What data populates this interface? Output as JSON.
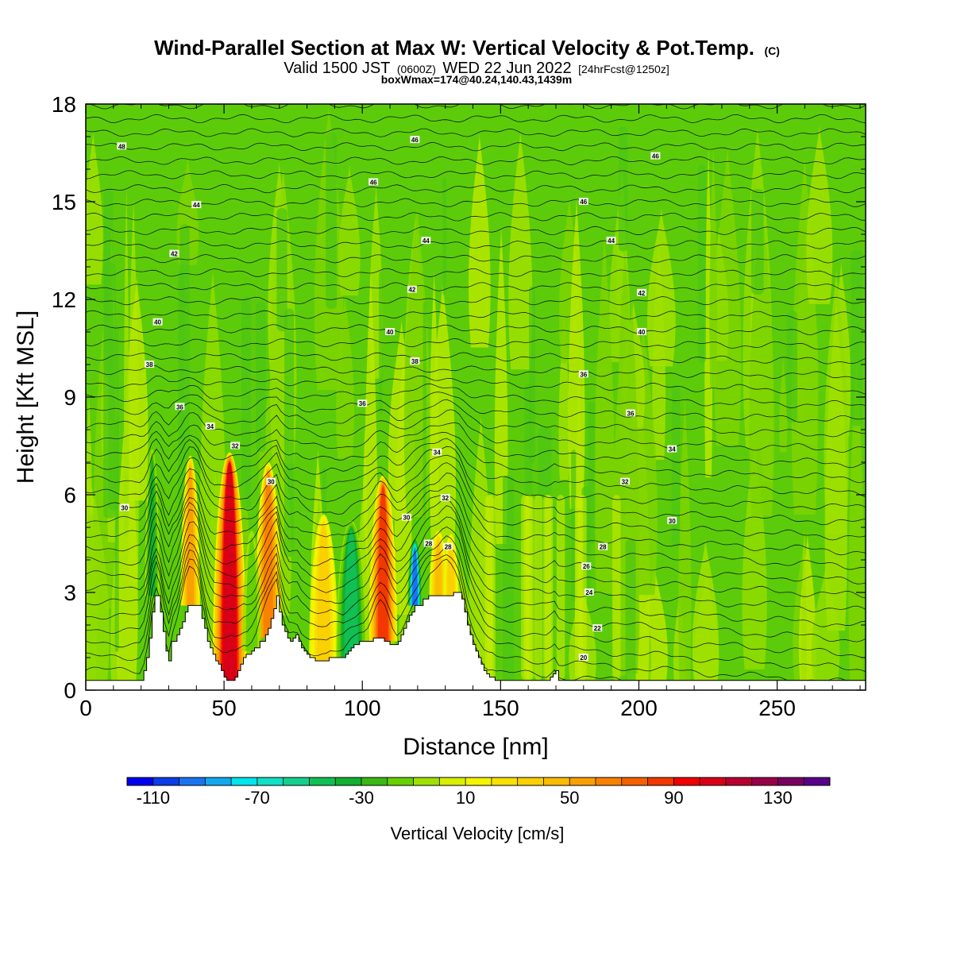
{
  "title": {
    "main": "Wind-Parallel Section at Max W: Vertical Velocity & Pot.Temp.",
    "copyright": "(C)",
    "valid_prefix": "Valid 1500 JST",
    "valid_z": "(0600Z)",
    "valid_date": "WED 22 Jun 2022",
    "forecast": "[24hrFcst@1250z]",
    "box": "boxWmax=174@40.24,140.43,1439m"
  },
  "chart_data": {
    "type": "heatmap",
    "xlabel": "Distance [nm]",
    "ylabel": "Height [Kft MSL]",
    "xlim": [
      0,
      282
    ],
    "ylim": [
      0,
      18
    ],
    "xticks": [
      0,
      50,
      100,
      150,
      200,
      250
    ],
    "yticks": [
      0,
      3,
      6,
      9,
      12,
      15,
      18
    ],
    "colorbar": {
      "label": "Vertical Velocity [cm/s]",
      "boundaries": [
        -120,
        -110,
        -100,
        -90,
        -80,
        -70,
        -60,
        -50,
        -40,
        -30,
        -20,
        -10,
        0,
        10,
        20,
        30,
        40,
        50,
        60,
        70,
        80,
        90,
        100,
        110,
        120,
        130,
        140,
        150
      ],
      "tick_values": [
        -110,
        -70,
        -30,
        10,
        50,
        90,
        130
      ],
      "tick_labels": [
        "-110",
        "-70",
        "-30",
        "10",
        "50",
        "90",
        "130"
      ],
      "colors": [
        "#0000ee",
        "#0a3ee6",
        "#1a74f0",
        "#14a8ee",
        "#00e4ee",
        "#10e0c4",
        "#14d08c",
        "#10c054",
        "#12b030",
        "#3ab814",
        "#66d000",
        "#a0e000",
        "#d8f000",
        "#f4f400",
        "#f8e000",
        "#fad000",
        "#fbbc00",
        "#f9a000",
        "#f88200",
        "#f56000",
        "#f23800",
        "#ee0000",
        "#d80018",
        "#b80030",
        "#980048",
        "#780060",
        "#580088"
      ]
    },
    "terrain": {
      "name": "terrain",
      "x": [
        0,
        20,
        21,
        22,
        23,
        24,
        25,
        26,
        27,
        28,
        29,
        30,
        31,
        32,
        33,
        34,
        35,
        36,
        37,
        38,
        39,
        40,
        41,
        42,
        43,
        44,
        45,
        46,
        47,
        48,
        49,
        50,
        51,
        52,
        53,
        54,
        55,
        56,
        57,
        58,
        59,
        60,
        61,
        62,
        63,
        64,
        65,
        66,
        67,
        68,
        69,
        70,
        71,
        72,
        73,
        74,
        75,
        76,
        77,
        78,
        79,
        80,
        81,
        82,
        83,
        84,
        85,
        86,
        87,
        88,
        89,
        90,
        91,
        92,
        93,
        94,
        95,
        96,
        97,
        98,
        99,
        100,
        101,
        102,
        103,
        104,
        105,
        106,
        107,
        108,
        109,
        110,
        111,
        112,
        113,
        114,
        115,
        116,
        117,
        118,
        119,
        120,
        121,
        122,
        123,
        124,
        125,
        126,
        127,
        128,
        129,
        130,
        131,
        132,
        133,
        134,
        135,
        136,
        137,
        138,
        139,
        140,
        141,
        142,
        143,
        144,
        145,
        146,
        147,
        148,
        149,
        150,
        151,
        152,
        153,
        154,
        155,
        156,
        157,
        158,
        159,
        160,
        161,
        162,
        163,
        164,
        165,
        166,
        167,
        168,
        169,
        170,
        171,
        172,
        282
      ],
      "y": [
        0.3,
        0.3,
        0.6,
        1.0,
        1.6,
        2.4,
        2.9,
        2.9,
        2.4,
        1.8,
        1.2,
        0.9,
        1.5,
        1.5,
        1.7,
        1.9,
        2.1,
        2.4,
        2.6,
        2.6,
        2.6,
        2.6,
        2.6,
        2.2,
        1.9,
        1.5,
        1.3,
        1.1,
        0.9,
        0.8,
        0.6,
        0.4,
        0.3,
        0.3,
        0.3,
        0.4,
        0.6,
        0.8,
        1.0,
        1.1,
        1.1,
        1.2,
        1.3,
        1.3,
        1.5,
        1.5,
        1.7,
        1.9,
        2.2,
        2.5,
        2.9,
        2.4,
        2.0,
        1.8,
        1.6,
        1.5,
        1.6,
        1.7,
        1.5,
        1.3,
        1.2,
        1.1,
        1.0,
        1.0,
        0.9,
        0.9,
        0.9,
        0.9,
        0.9,
        1.0,
        1.0,
        1.0,
        1.0,
        1.0,
        1.0,
        1.1,
        1.2,
        1.3,
        1.4,
        1.4,
        1.5,
        1.5,
        1.5,
        1.5,
        1.5,
        1.6,
        1.6,
        1.6,
        1.6,
        1.5,
        1.5,
        1.4,
        1.4,
        1.4,
        1.5,
        1.7,
        1.9,
        2.1,
        2.3,
        2.4,
        2.6,
        2.6,
        2.6,
        2.8,
        2.8,
        2.9,
        2.9,
        2.9,
        2.9,
        2.9,
        2.9,
        2.9,
        2.9,
        2.9,
        3.0,
        3.0,
        3.0,
        2.8,
        2.4,
        2.0,
        1.7,
        1.4,
        1.2,
        1.0,
        0.8,
        0.6,
        0.5,
        0.4,
        0.4,
        0.3,
        0.3,
        0.3,
        0.3,
        0.3,
        0.3,
        0.3,
        0.3,
        0.3,
        0.3,
        0.3,
        0.3,
        0.3,
        0.3,
        0.3,
        0.3,
        0.3,
        0.3,
        0.3,
        0.3,
        0.4,
        0.5,
        0.6,
        0.3,
        0.3,
        0.3,
        0.3
      ]
    },
    "updrafts": [
      {
        "x": 37.8,
        "width": 1.6,
        "base": 2.6,
        "top": 6.8,
        "peak": 60
      },
      {
        "x": 52,
        "width": 2.8,
        "base": 0.3,
        "top": 6.9,
        "peak": 120
      },
      {
        "x": 66,
        "width": 2.2,
        "base": 1.6,
        "top": 6.6,
        "peak": 75
      },
      {
        "x": 86,
        "width": 2.4,
        "base": 0.9,
        "top": 5.0,
        "peak": 40
      },
      {
        "x": 107.5,
        "width": 2.3,
        "base": 1.5,
        "top": 6.2,
        "peak": 90
      },
      {
        "x": 127.5,
        "width": 1.5,
        "base": 2.9,
        "top": 4.5,
        "peak": 45
      },
      {
        "x": 132,
        "width": 1.3,
        "base": 2.9,
        "top": 4.4,
        "peak": 40
      }
    ],
    "downdrafts": [
      {
        "x": 24,
        "width": 1.2,
        "base": 2.9,
        "top": 7.0,
        "peak": -35
      },
      {
        "x": 96,
        "width": 2.5,
        "base": 1.0,
        "top": 4.8,
        "peak": -55
      },
      {
        "x": 119,
        "width": 1.2,
        "base": 2.6,
        "top": 4.3,
        "peak": -105
      },
      {
        "x": 60,
        "width": 1.5,
        "base": 1.2,
        "top": 4.5,
        "peak": -20
      }
    ],
    "isentropes": {
      "name": "Pot.Temp.",
      "labels": [
        {
          "text": "48",
          "x": 13,
          "y": 16.7
        },
        {
          "text": "46",
          "x": 119,
          "y": 16.9
        },
        {
          "text": "46",
          "x": 206,
          "y": 16.4
        },
        {
          "text": "46",
          "x": 104,
          "y": 15.6
        },
        {
          "text": "46",
          "x": 180,
          "y": 15.0
        },
        {
          "text": "44",
          "x": 40,
          "y": 14.9
        },
        {
          "text": "44",
          "x": 123,
          "y": 13.8
        },
        {
          "text": "44",
          "x": 190,
          "y": 13.8
        },
        {
          "text": "42",
          "x": 32,
          "y": 13.4
        },
        {
          "text": "42",
          "x": 118,
          "y": 12.3
        },
        {
          "text": "42",
          "x": 201,
          "y": 12.2
        },
        {
          "text": "40",
          "x": 26,
          "y": 11.3
        },
        {
          "text": "40",
          "x": 110,
          "y": 11.0
        },
        {
          "text": "40",
          "x": 201,
          "y": 11.0
        },
        {
          "text": "38",
          "x": 23,
          "y": 10.0
        },
        {
          "text": "38",
          "x": 119,
          "y": 10.1
        },
        {
          "text": "36",
          "x": 180,
          "y": 9.7
        },
        {
          "text": "36",
          "x": 34,
          "y": 8.7
        },
        {
          "text": "36",
          "x": 100,
          "y": 8.8
        },
        {
          "text": "36",
          "x": 197,
          "y": 8.5
        },
        {
          "text": "34",
          "x": 45,
          "y": 8.1
        },
        {
          "text": "34",
          "x": 127,
          "y": 7.3
        },
        {
          "text": "34",
          "x": 212,
          "y": 7.4
        },
        {
          "text": "32",
          "x": 54,
          "y": 7.5
        },
        {
          "text": "32",
          "x": 195,
          "y": 6.4
        },
        {
          "text": "32",
          "x": 130,
          "y": 5.9
        },
        {
          "text": "30",
          "x": 67,
          "y": 6.4
        },
        {
          "text": "30",
          "x": 14,
          "y": 5.6
        },
        {
          "text": "30",
          "x": 116,
          "y": 5.3
        },
        {
          "text": "30",
          "x": 212,
          "y": 5.2
        },
        {
          "text": "28",
          "x": 124,
          "y": 4.5
        },
        {
          "text": "28",
          "x": 131,
          "y": 4.4
        },
        {
          "text": "28",
          "x": 187,
          "y": 4.4
        },
        {
          "text": "26",
          "x": 181,
          "y": 3.8
        },
        {
          "text": "24",
          "x": 182,
          "y": 3.0
        },
        {
          "text": "22",
          "x": 185,
          "y": 1.9
        },
        {
          "text": "20",
          "x": 180,
          "y": 1.0
        }
      ]
    }
  }
}
